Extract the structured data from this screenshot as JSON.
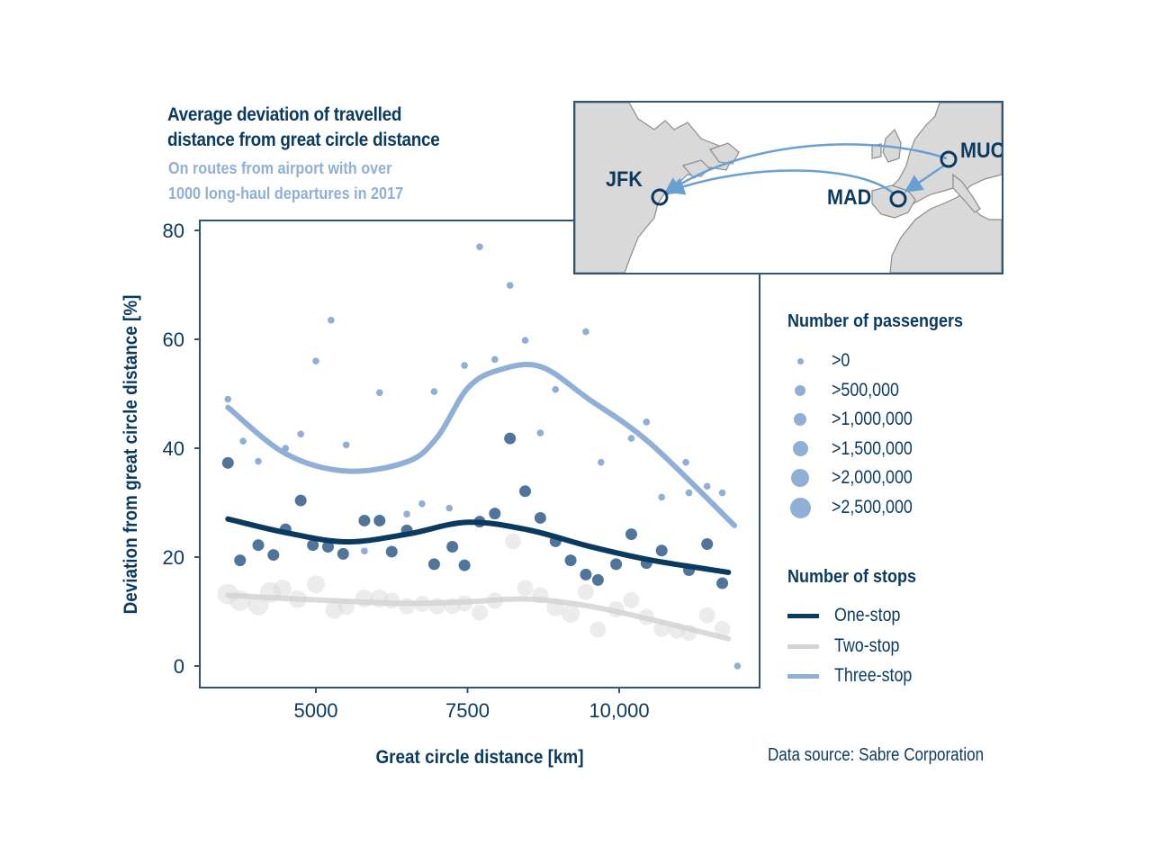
{
  "header": {
    "title_line1": "Average deviation of travelled",
    "title_line2": "distance from great circle distance",
    "subtitle_line1": "On routes from airport with over",
    "subtitle_line2": "1000 long-haul departures in 2017"
  },
  "map_inset": {
    "airports": [
      "JFK",
      "MAD",
      "MUC"
    ],
    "colors": {
      "land": "#d9d9d9",
      "coast": "#8c8c8c",
      "route": "#6a9fd4",
      "marker": "#0b3a5f"
    }
  },
  "legend": {
    "passengers_title": "Number of passengers",
    "passengers_items": [
      ">0",
      ">500,000",
      ">1,000,000",
      ">1,500,000",
      ">2,000,000",
      ">2,500,000"
    ],
    "stops_title": "Number of stops",
    "stops_items": [
      "One-stop",
      "Two-stop",
      "Three-stop"
    ]
  },
  "source": "Data source: Sabre Corporation",
  "colors": {
    "one_stop": "#0b3a5f",
    "one_stop_points": "#3d6590",
    "two_stop": "#d4d4d4",
    "three_stop": "#8fafd6",
    "axis": "#2f5677"
  },
  "chart_data": {
    "type": "scatter",
    "xlabel": "Great circle distance [km]",
    "ylabel": "Deviation from great circle distance [%]",
    "xlim": [
      3300,
      12500
    ],
    "ylim": [
      -3,
      82
    ],
    "xticks": [
      5000,
      7500,
      10000
    ],
    "xtick_labels": [
      "5000",
      "7500",
      "10,000"
    ],
    "yticks": [
      0,
      20,
      40,
      60,
      80
    ],
    "ytick_labels": [
      "0",
      "20",
      "40",
      "60",
      "80"
    ],
    "grid": false,
    "legend_placement": "right",
    "series": [
      {
        "name": "One-stop",
        "points": [
          {
            "x": 3550,
            "y": 37.3,
            "size": 1
          },
          {
            "x": 3750,
            "y": 19.4,
            "size": 1
          },
          {
            "x": 4050,
            "y": 22.2,
            "size": 1
          },
          {
            "x": 4300,
            "y": 20.4,
            "size": 1
          },
          {
            "x": 4500,
            "y": 25.1,
            "size": 1
          },
          {
            "x": 4750,
            "y": 30.4,
            "size": 1
          },
          {
            "x": 4950,
            "y": 22.2,
            "size": 1
          },
          {
            "x": 5200,
            "y": 21.9,
            "size": 1
          },
          {
            "x": 5450,
            "y": 20.6,
            "size": 1
          },
          {
            "x": 5800,
            "y": 26.7,
            "size": 1
          },
          {
            "x": 6050,
            "y": 26.7,
            "size": 1
          },
          {
            "x": 6250,
            "y": 21.0,
            "size": 1
          },
          {
            "x": 6500,
            "y": 24.9,
            "size": 1
          },
          {
            "x": 6950,
            "y": 18.7,
            "size": 1
          },
          {
            "x": 7250,
            "y": 21.9,
            "size": 1
          },
          {
            "x": 7450,
            "y": 18.5,
            "size": 1
          },
          {
            "x": 7700,
            "y": 26.5,
            "size": 1
          },
          {
            "x": 7950,
            "y": 28.0,
            "size": 1
          },
          {
            "x": 8200,
            "y": 41.8,
            "size": 1
          },
          {
            "x": 8450,
            "y": 32.1,
            "size": 1
          },
          {
            "x": 8700,
            "y": 27.2,
            "size": 1
          },
          {
            "x": 8950,
            "y": 22.9,
            "size": 1
          },
          {
            "x": 9200,
            "y": 19.4,
            "size": 1
          },
          {
            "x": 9450,
            "y": 16.8,
            "size": 1
          },
          {
            "x": 9650,
            "y": 15.8,
            "size": 1
          },
          {
            "x": 9950,
            "y": 18.7,
            "size": 1
          },
          {
            "x": 10200,
            "y": 24.2,
            "size": 1
          },
          {
            "x": 10450,
            "y": 18.9,
            "size": 1
          },
          {
            "x": 10700,
            "y": 21.2,
            "size": 1
          },
          {
            "x": 11150,
            "y": 17.6,
            "size": 1
          },
          {
            "x": 11450,
            "y": 22.4,
            "size": 1
          },
          {
            "x": 11700,
            "y": 15.2,
            "size": 1
          }
        ],
        "trend": [
          {
            "x": 3550,
            "y": 27.0
          },
          {
            "x": 4500,
            "y": 24.5
          },
          {
            "x": 5500,
            "y": 22.8
          },
          {
            "x": 6500,
            "y": 24.2
          },
          {
            "x": 7500,
            "y": 26.4
          },
          {
            "x": 8500,
            "y": 25.0
          },
          {
            "x": 9500,
            "y": 22.0
          },
          {
            "x": 10500,
            "y": 19.5
          },
          {
            "x": 11800,
            "y": 17.2
          }
        ]
      },
      {
        "name": "Two-stop",
        "points": [
          {
            "x": 3550,
            "y": 13.2,
            "size": 3
          },
          {
            "x": 3750,
            "y": 12.0,
            "size": 3
          },
          {
            "x": 4050,
            "y": 11.2,
            "size": 3
          },
          {
            "x": 4250,
            "y": 13.5,
            "size": 3
          },
          {
            "x": 4450,
            "y": 14.2,
            "size": 2
          },
          {
            "x": 4700,
            "y": 12.3,
            "size": 2
          },
          {
            "x": 5000,
            "y": 15.0,
            "size": 2
          },
          {
            "x": 5300,
            "y": 10.3,
            "size": 2
          },
          {
            "x": 5500,
            "y": 10.9,
            "size": 1
          },
          {
            "x": 5800,
            "y": 12.4,
            "size": 2
          },
          {
            "x": 6050,
            "y": 12.4,
            "size": 2
          },
          {
            "x": 6250,
            "y": 12.0,
            "size": 1
          },
          {
            "x": 6500,
            "y": 11.0,
            "size": 1
          },
          {
            "x": 6750,
            "y": 11.4,
            "size": 1
          },
          {
            "x": 7000,
            "y": 11.0,
            "size": 1
          },
          {
            "x": 7250,
            "y": 11.0,
            "size": 1
          },
          {
            "x": 7450,
            "y": 11.5,
            "size": 1
          },
          {
            "x": 7700,
            "y": 9.8,
            "size": 1
          },
          {
            "x": 7950,
            "y": 12.0,
            "size": 1
          },
          {
            "x": 8250,
            "y": 22.9,
            "size": 1
          },
          {
            "x": 8450,
            "y": 14.3,
            "size": 1
          },
          {
            "x": 8700,
            "y": 13.0,
            "size": 1
          },
          {
            "x": 8950,
            "y": 10.8,
            "size": 2
          },
          {
            "x": 9200,
            "y": 9.6,
            "size": 2
          },
          {
            "x": 9450,
            "y": 13.6,
            "size": 1
          },
          {
            "x": 9650,
            "y": 6.7,
            "size": 1
          },
          {
            "x": 9950,
            "y": 10.4,
            "size": 1
          },
          {
            "x": 10200,
            "y": 12.1,
            "size": 1
          },
          {
            "x": 10450,
            "y": 9.0,
            "size": 1
          },
          {
            "x": 10700,
            "y": 6.8,
            "size": 1
          },
          {
            "x": 10950,
            "y": 6.5,
            "size": 1
          },
          {
            "x": 11150,
            "y": 6.1,
            "size": 1
          },
          {
            "x": 11450,
            "y": 9.3,
            "size": 1
          },
          {
            "x": 11700,
            "y": 6.8,
            "size": 1
          }
        ],
        "trend": [
          {
            "x": 3550,
            "y": 13.0
          },
          {
            "x": 4500,
            "y": 12.4
          },
          {
            "x": 5500,
            "y": 11.9
          },
          {
            "x": 6500,
            "y": 11.5
          },
          {
            "x": 7500,
            "y": 11.8
          },
          {
            "x": 8500,
            "y": 12.3
          },
          {
            "x": 9500,
            "y": 11.0
          },
          {
            "x": 10500,
            "y": 8.6
          },
          {
            "x": 11800,
            "y": 5.0
          }
        ]
      },
      {
        "name": "Three-stop",
        "points": [
          {
            "x": 3550,
            "y": 49.0,
            "size": 0
          },
          {
            "x": 3800,
            "y": 41.3,
            "size": 0
          },
          {
            "x": 4050,
            "y": 37.6,
            "size": 0
          },
          {
            "x": 4500,
            "y": 40.0,
            "size": 0
          },
          {
            "x": 4750,
            "y": 42.6,
            "size": 0
          },
          {
            "x": 5000,
            "y": 56.0,
            "size": 0
          },
          {
            "x": 5250,
            "y": 63.5,
            "size": 0
          },
          {
            "x": 5500,
            "y": 40.6,
            "size": 0
          },
          {
            "x": 5800,
            "y": 21.1,
            "size": 0
          },
          {
            "x": 6050,
            "y": 50.2,
            "size": 0
          },
          {
            "x": 6500,
            "y": 27.9,
            "size": 0
          },
          {
            "x": 6750,
            "y": 29.8,
            "size": 0
          },
          {
            "x": 6950,
            "y": 50.4,
            "size": 0
          },
          {
            "x": 7200,
            "y": 29.0,
            "size": 0
          },
          {
            "x": 7450,
            "y": 55.2,
            "size": 0
          },
          {
            "x": 7700,
            "y": 77.0,
            "size": 0
          },
          {
            "x": 7950,
            "y": 56.3,
            "size": 0
          },
          {
            "x": 8200,
            "y": 69.9,
            "size": 0
          },
          {
            "x": 8450,
            "y": 59.8,
            "size": 0
          },
          {
            "x": 8700,
            "y": 42.8,
            "size": 0
          },
          {
            "x": 8950,
            "y": 50.8,
            "size": 0
          },
          {
            "x": 9450,
            "y": 61.4,
            "size": 0
          },
          {
            "x": 9700,
            "y": 37.4,
            "size": 0
          },
          {
            "x": 10200,
            "y": 41.8,
            "size": 0
          },
          {
            "x": 10450,
            "y": 44.8,
            "size": 0
          },
          {
            "x": 10700,
            "y": 31.0,
            "size": 0
          },
          {
            "x": 11100,
            "y": 37.4,
            "size": 0
          },
          {
            "x": 11150,
            "y": 31.8,
            "size": 0
          },
          {
            "x": 11450,
            "y": 33.0,
            "size": 0
          },
          {
            "x": 11700,
            "y": 31.8,
            "size": 0
          },
          {
            "x": 11950,
            "y": 0.0,
            "size": 0
          }
        ],
        "trend": [
          {
            "x": 3550,
            "y": 47.5
          },
          {
            "x": 4500,
            "y": 39.0
          },
          {
            "x": 5500,
            "y": 35.8
          },
          {
            "x": 6500,
            "y": 37.5
          },
          {
            "x": 7000,
            "y": 42.0
          },
          {
            "x": 7500,
            "y": 51.0
          },
          {
            "x": 8000,
            "y": 54.3
          },
          {
            "x": 8700,
            "y": 55.0
          },
          {
            "x": 9500,
            "y": 49.0
          },
          {
            "x": 10500,
            "y": 41.0
          },
          {
            "x": 11900,
            "y": 25.8
          }
        ]
      }
    ]
  }
}
